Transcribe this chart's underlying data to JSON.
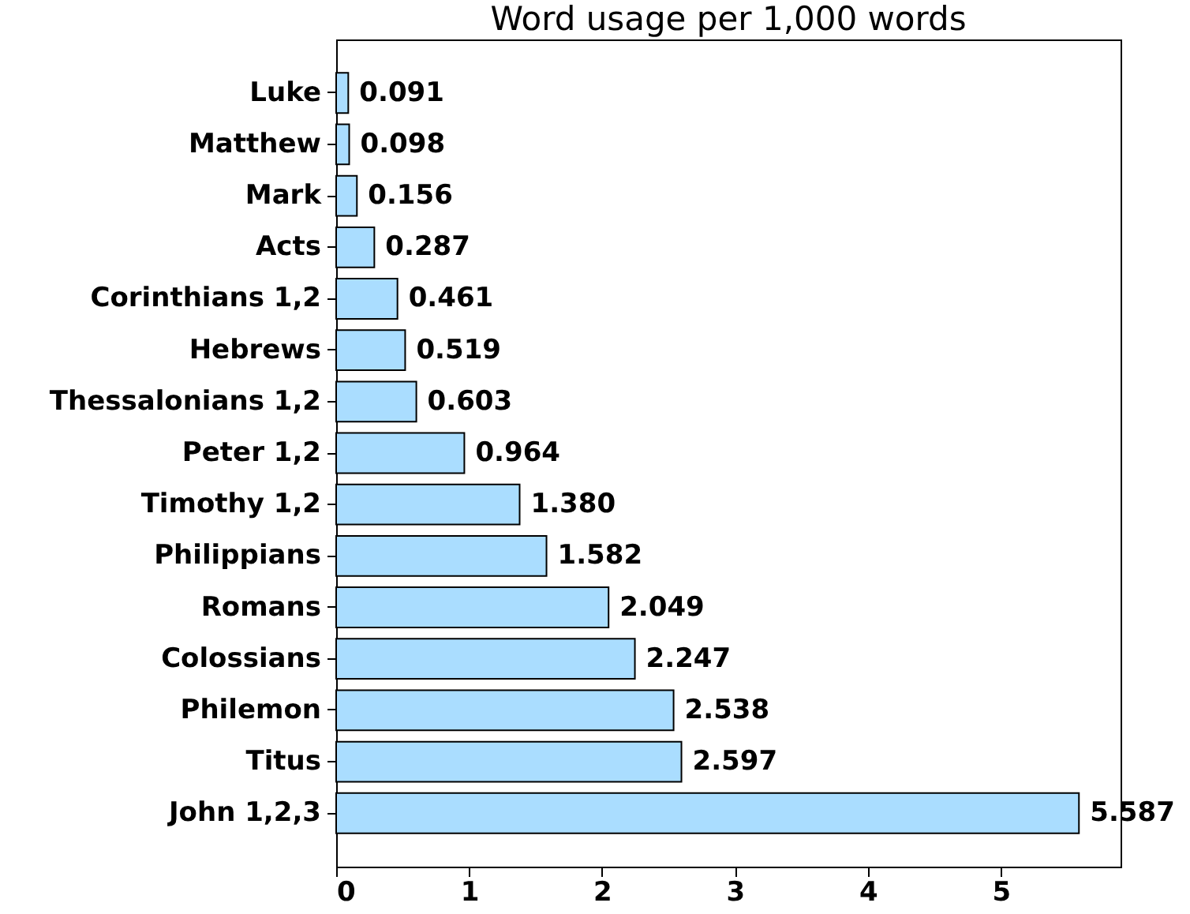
{
  "chart_data": {
    "type": "bar",
    "orientation": "horizontal",
    "title": "Word usage per 1,000 words",
    "categories": [
      "Luke",
      "Matthew",
      "Mark",
      "Acts",
      "Corinthians 1,2",
      "Hebrews",
      "Thessalonians 1,2",
      "Peter 1,2",
      "Timothy 1,2",
      "Philippians",
      "Romans",
      "Colossians",
      "Philemon",
      "Titus",
      "John 1,2,3"
    ],
    "values": [
      0.091,
      0.098,
      0.156,
      0.287,
      0.461,
      0.519,
      0.603,
      0.964,
      1.38,
      1.582,
      2.049,
      2.247,
      2.538,
      2.597,
      5.587
    ],
    "value_labels": [
      "0.091",
      "0.098",
      "0.156",
      "0.287",
      "0.461",
      "0.519",
      "0.603",
      "0.964",
      "1.380",
      "1.582",
      "2.049",
      "2.247",
      "2.538",
      "2.597",
      "5.587"
    ],
    "color": "#aaddff",
    "xlim": [
      0,
      5.9
    ],
    "xticks": [
      0,
      1,
      2,
      3,
      4,
      5
    ],
    "grid": false
  }
}
